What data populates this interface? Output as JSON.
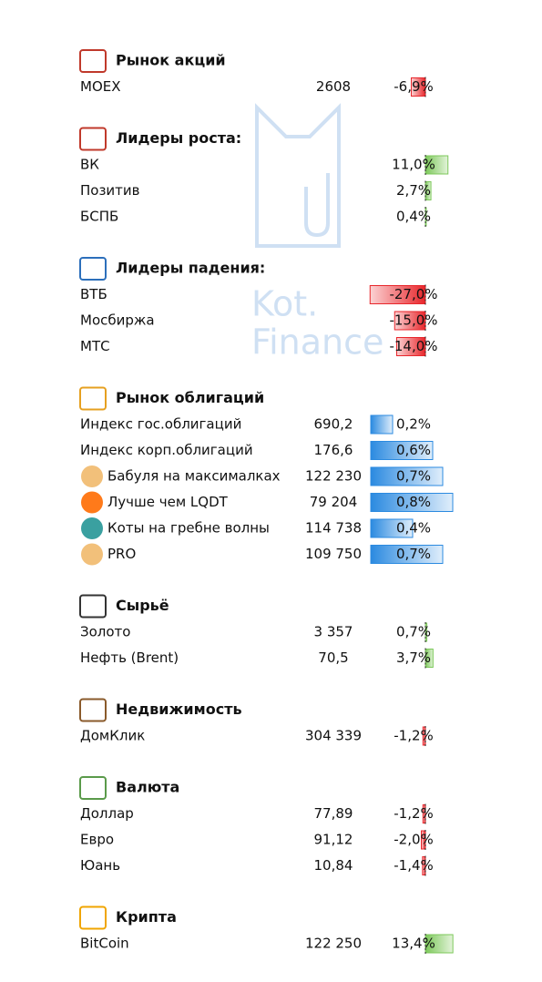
{
  "watermark": [
    "Kot.",
    "Finance"
  ],
  "bar_colors": {
    "positive": "#7cc85a",
    "negative": "#e8262b"
  },
  "sections": [
    {
      "title": "Рынок акций",
      "rows": [
        {
          "name": "MOEX",
          "value": "2608",
          "change": {
            "value": -6.9,
            "label": "-6,9%"
          }
        }
      ]
    },
    {
      "title": "Лидеры роста:",
      "rows": [
        {
          "name": "ВК",
          "change": {
            "value": 11.0,
            "label": "11,0%"
          }
        },
        {
          "name": "Позитив",
          "change": {
            "value": 2.7,
            "label": "2,7%"
          }
        },
        {
          "name": "БСПБ",
          "change": {
            "value": 0.4,
            "label": "0,4%"
          }
        }
      ]
    },
    {
      "title": "Лидеры падения:",
      "rows": [
        {
          "name": "ВТБ",
          "change": {
            "value": -27.0,
            "label": "-27,0%"
          }
        },
        {
          "name": "Мосбиржа",
          "change": {
            "value": -15.0,
            "label": "-15,0%"
          }
        },
        {
          "name": "МТС",
          "change": {
            "value": -14.0,
            "label": "-14,0%"
          }
        }
      ]
    },
    {
      "title": "Рынок облигаций",
      "bar_color": "#2b8ae0",
      "rows": [
        {
          "name": "Индекс гос.облигаций",
          "value": "690,2",
          "change": {
            "value": 0.2,
            "label": "0,2%"
          }
        },
        {
          "name": "Индекс корп.облигаций",
          "value": "176,6",
          "change": {
            "value": 0.6,
            "label": "0,6%"
          }
        },
        {
          "name": "Бабуля на максималках",
          "value": "122 230",
          "change": {
            "value": 0.7,
            "label": "0,7%"
          }
        },
        {
          "name": "Лучше чем LQDT",
          "value": "79 204",
          "change": {
            "value": 0.8,
            "label": "0,8%"
          }
        },
        {
          "name": "Коты на гребне волны",
          "value": "114 738",
          "change": {
            "value": 0.4,
            "label": "0,4%"
          }
        },
        {
          "name": "PRO",
          "value": "109 750",
          "change": {
            "value": 0.7,
            "label": "0,7%"
          }
        }
      ]
    },
    {
      "title": "Сырьё",
      "rows": [
        {
          "name": "Золото",
          "value": "3 357",
          "change": {
            "value": 0.7,
            "label": "0,7%"
          }
        },
        {
          "name": "Нефть (Brent)",
          "value": "70,5",
          "change": {
            "value": 3.7,
            "label": "3,7%"
          }
        }
      ]
    },
    {
      "title": "Недвижимость",
      "rows": [
        {
          "name": "ДомКлик",
          "value": "304 339",
          "change": {
            "value": -1.2,
            "label": "-1,2%"
          }
        }
      ]
    },
    {
      "title": "Валюта",
      "rows": [
        {
          "name": "Доллар",
          "value": "77,89",
          "change": {
            "value": -1.2,
            "label": "-1,2%"
          }
        },
        {
          "name": "Евро",
          "value": "91,12",
          "change": {
            "value": -2.0,
            "label": "-2,0%"
          }
        },
        {
          "name": "Юань",
          "value": "10,84",
          "change": {
            "value": -1.4,
            "label": "-1,4%"
          }
        }
      ]
    },
    {
      "title": "Крипта",
      "rows": [
        {
          "name": "BitCoin",
          "value": "122 250",
          "change": {
            "value": 13.4,
            "label": "13,4%"
          }
        }
      ]
    }
  ]
}
